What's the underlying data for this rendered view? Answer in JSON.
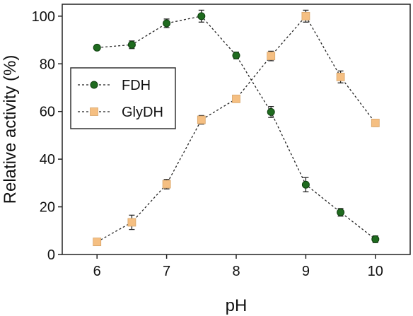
{
  "chart_data": {
    "type": "line",
    "title": "",
    "xlabel": "pH",
    "ylabel": "Relative activity (%)",
    "xlim": [
      5.5,
      10.5
    ],
    "ylim": [
      0,
      105
    ],
    "x_ticks": [
      "6",
      "7",
      "8",
      "9",
      "10"
    ],
    "y_ticks": [
      "0",
      "20",
      "40",
      "60",
      "80",
      "100"
    ],
    "grid": false,
    "legend_position": "center-left",
    "series": [
      {
        "name": "FDH",
        "marker": "circle",
        "line_style": "dashed",
        "color": "#1f6b1f",
        "x": [
          6,
          6.5,
          7,
          7.5,
          8,
          8.5,
          9,
          9.5,
          10
        ],
        "y": [
          86.8,
          88.0,
          97.0,
          100.0,
          83.5,
          59.8,
          29.3,
          17.7,
          6.4
        ],
        "error": [
          0,
          1.6,
          1.8,
          2.5,
          1.4,
          2.3,
          3.0,
          1.6,
          1.4
        ]
      },
      {
        "name": "GlyDH",
        "marker": "square",
        "line_style": "dashed",
        "color": "#f5bf82",
        "x": [
          6,
          6.5,
          7,
          7.5,
          8,
          8.5,
          9,
          9.5,
          10
        ],
        "y": [
          5.3,
          13.5,
          29.5,
          56.5,
          65.3,
          83.3,
          100.0,
          74.5,
          55.2
        ],
        "error": [
          0.8,
          3.0,
          2.0,
          1.8,
          1.3,
          2.0,
          2.5,
          2.5,
          1.5
        ]
      }
    ]
  }
}
